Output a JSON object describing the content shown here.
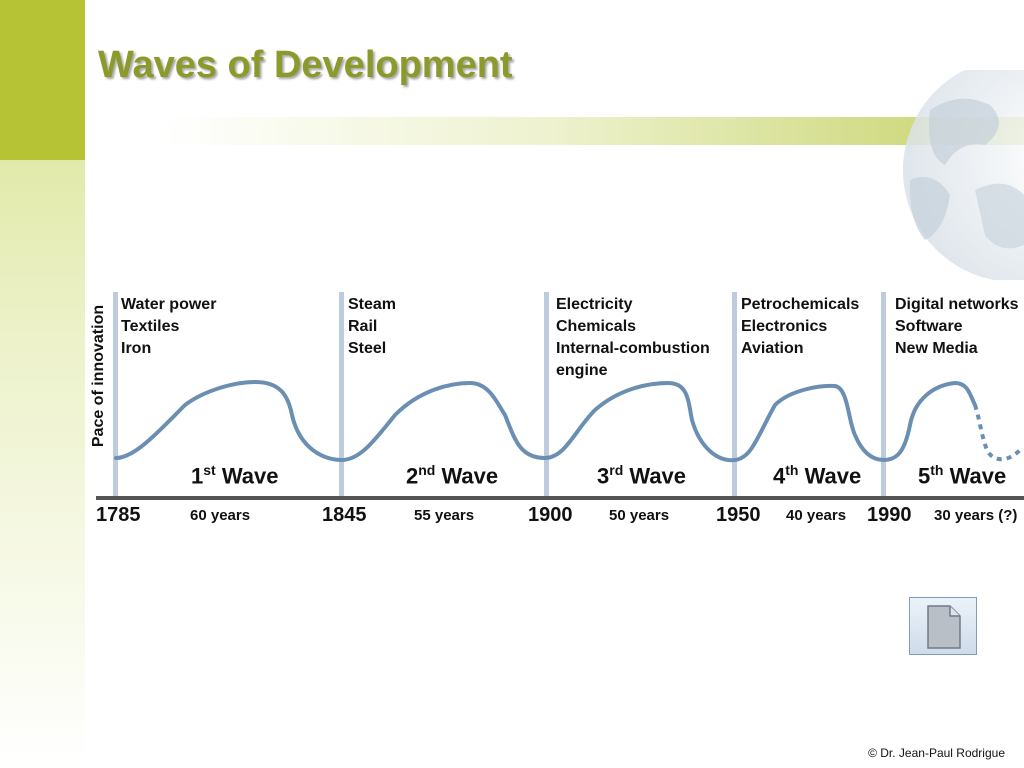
{
  "slide": {
    "title": "Waves of Development",
    "y_axis_label": "Pace of innovation",
    "copyright": "© Dr. Jean-Paul Rodrigue"
  },
  "periods": [
    {
      "year": "1785",
      "techs": [
        "Water power",
        "Textiles",
        "Iron"
      ],
      "wave_num": "1",
      "wave_suffix": "st",
      "wave_word": "Wave",
      "duration": "60 years"
    },
    {
      "year": "1845",
      "techs": [
        "Steam",
        "Rail",
        "Steel"
      ],
      "wave_num": "2",
      "wave_suffix": "nd",
      "wave_word": "Wave",
      "duration": "55 years"
    },
    {
      "year": "1900",
      "techs": [
        "Electricity",
        "Chemicals",
        "Internal-combustion",
        "engine"
      ],
      "wave_num": "3",
      "wave_suffix": "rd",
      "wave_word": "Wave",
      "duration": "50 years"
    },
    {
      "year": "1950",
      "techs": [
        "Petrochemicals",
        "Electronics",
        "Aviation"
      ],
      "wave_num": "4",
      "wave_suffix": "th",
      "wave_word": "Wave",
      "duration": "40 years"
    },
    {
      "year": "1990",
      "techs": [
        "Digital networks",
        "Software",
        "New Media"
      ],
      "wave_num": "5",
      "wave_suffix": "th",
      "wave_word": "Wave",
      "duration": "30 years (?)"
    }
  ],
  "colors": {
    "curve": "#6b8fb3",
    "accent_green": "#b5c334",
    "title_green": "#8c9a2b",
    "divider": "#bccbdd"
  },
  "icons": {
    "globe": "globe-icon",
    "document": "document-icon"
  }
}
